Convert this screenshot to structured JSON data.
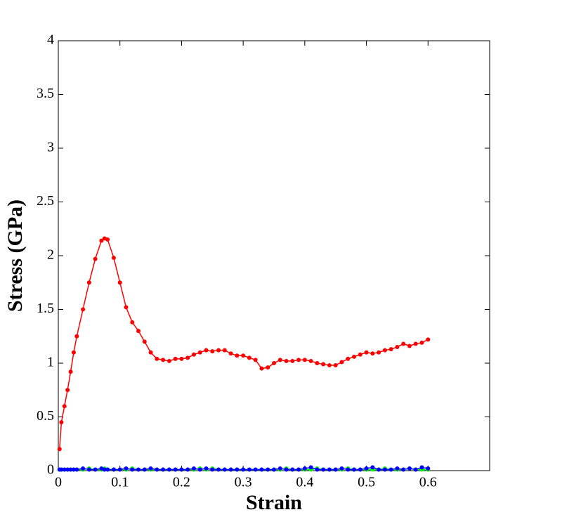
{
  "chart_data": {
    "type": "line",
    "x_label": "Strain",
    "y_label": "Stress (GPa)",
    "xlim": [
      0,
      0.7
    ],
    "ylim": [
      0,
      4
    ],
    "xticks": [
      0,
      0.1,
      0.2,
      0.3,
      0.4,
      0.5,
      0.6
    ],
    "yticks": [
      0,
      0.5,
      1,
      1.5,
      2,
      2.5,
      3,
      3.5,
      4
    ],
    "grid": false,
    "x": [
      0.002,
      0.005,
      0.01,
      0.015,
      0.02,
      0.025,
      0.03,
      0.04,
      0.05,
      0.06,
      0.07,
      0.075,
      0.08,
      0.09,
      0.1,
      0.11,
      0.12,
      0.13,
      0.14,
      0.15,
      0.16,
      0.17,
      0.18,
      0.19,
      0.2,
      0.21,
      0.22,
      0.23,
      0.24,
      0.25,
      0.26,
      0.27,
      0.28,
      0.29,
      0.3,
      0.31,
      0.32,
      0.33,
      0.34,
      0.35,
      0.36,
      0.37,
      0.38,
      0.39,
      0.4,
      0.41,
      0.42,
      0.43,
      0.44,
      0.45,
      0.46,
      0.47,
      0.48,
      0.49,
      0.5,
      0.51,
      0.52,
      0.53,
      0.54,
      0.55,
      0.56,
      0.57,
      0.58,
      0.59,
      0.6
    ],
    "series": [
      {
        "name": "red",
        "color": "#ff0000",
        "values": [
          0.2,
          0.45,
          0.6,
          0.75,
          0.92,
          1.1,
          1.25,
          1.5,
          1.75,
          1.97,
          2.14,
          2.16,
          2.15,
          1.98,
          1.75,
          1.52,
          1.38,
          1.3,
          1.2,
          1.1,
          1.04,
          1.03,
          1.02,
          1.04,
          1.04,
          1.05,
          1.08,
          1.1,
          1.12,
          1.11,
          1.12,
          1.12,
          1.09,
          1.07,
          1.07,
          1.05,
          1.03,
          0.95,
          0.96,
          1.0,
          1.03,
          1.02,
          1.02,
          1.03,
          1.03,
          1.02,
          1.0,
          0.99,
          0.98,
          0.98,
          1.01,
          1.04,
          1.06,
          1.08,
          1.1,
          1.09,
          1.1,
          1.12,
          1.13,
          1.15,
          1.18,
          1.16,
          1.18,
          1.19,
          1.22
        ]
      },
      {
        "name": "blue",
        "color": "#0000ff",
        "values": [
          0.01,
          0.01,
          0.01,
          0.01,
          0.01,
          0.01,
          0.01,
          0.02,
          0.01,
          0.01,
          0.02,
          0.01,
          0.01,
          0.01,
          0.01,
          0.02,
          0.01,
          0.01,
          0.01,
          0.02,
          0.01,
          0.01,
          0.01,
          0.01,
          0.01,
          0.01,
          0.02,
          0.01,
          0.02,
          0.01,
          0.01,
          0.01,
          0.01,
          0.01,
          0.01,
          0.01,
          0.01,
          0.01,
          0.01,
          0.01,
          0.02,
          0.01,
          0.01,
          0.01,
          0.02,
          0.03,
          0.01,
          0.01,
          0.01,
          0.01,
          0.02,
          0.01,
          0.01,
          0.01,
          0.02,
          0.03,
          0.01,
          0.01,
          0.01,
          0.02,
          0.01,
          0.02,
          0.01,
          0.03,
          0.02
        ]
      },
      {
        "name": "green",
        "color": "#00ff00",
        "values": [
          0.01,
          0.01,
          0.01,
          0.01,
          0.01,
          0.01,
          0.01,
          0.01,
          0.02,
          0.01,
          0.01,
          0.02,
          0.01,
          0.01,
          0.01,
          0.01,
          0.02,
          0.01,
          0.01,
          0.01,
          0.01,
          0.01,
          0.01,
          0.01,
          0.01,
          0.01,
          0.01,
          0.02,
          0.01,
          0.02,
          0.01,
          0.01,
          0.01,
          0.01,
          0.01,
          0.01,
          0.01,
          0.01,
          0.01,
          0.01,
          0.01,
          0.02,
          0.01,
          0.01,
          0.01,
          0.01,
          0.02,
          0.01,
          0.01,
          0.01,
          0.01,
          0.02,
          0.01,
          0.01,
          0.01,
          0.01,
          0.01,
          0.02,
          0.01,
          0.01,
          0.01,
          0.02,
          0.01,
          0.01,
          0.01
        ]
      }
    ]
  }
}
